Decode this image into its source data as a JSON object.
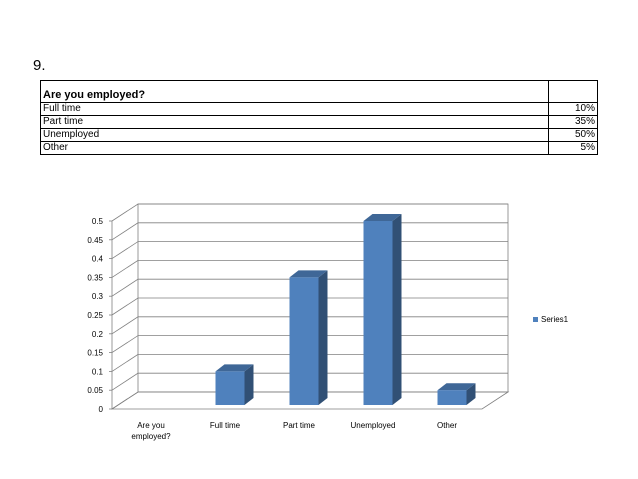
{
  "question_number": "9.",
  "table": {
    "header": "Are you employed?",
    "rows": [
      {
        "label": "Full time",
        "value": "10%"
      },
      {
        "label": "Part time",
        "value": "35%"
      },
      {
        "label": "Unemployed",
        "value": "50%"
      },
      {
        "label": "Other",
        "value": "5%"
      }
    ]
  },
  "chart_data": {
    "type": "bar",
    "categories": [
      "Are you employed?",
      "Full time",
      "Part time",
      "Unemployed",
      "Other"
    ],
    "series": [
      {
        "name": "Series1",
        "values": [
          0,
          0.1,
          0.35,
          0.5,
          0.05
        ],
        "color": "#4F81BD"
      }
    ],
    "ylim": [
      0,
      0.5
    ],
    "yticks": [
      "0",
      "0.05",
      "0.1",
      "0.15",
      "0.2",
      "0.25",
      "0.3",
      "0.35",
      "0.4",
      "0.45",
      "0.5"
    ],
    "grid": true,
    "legend": "right",
    "style": "3d-column"
  }
}
